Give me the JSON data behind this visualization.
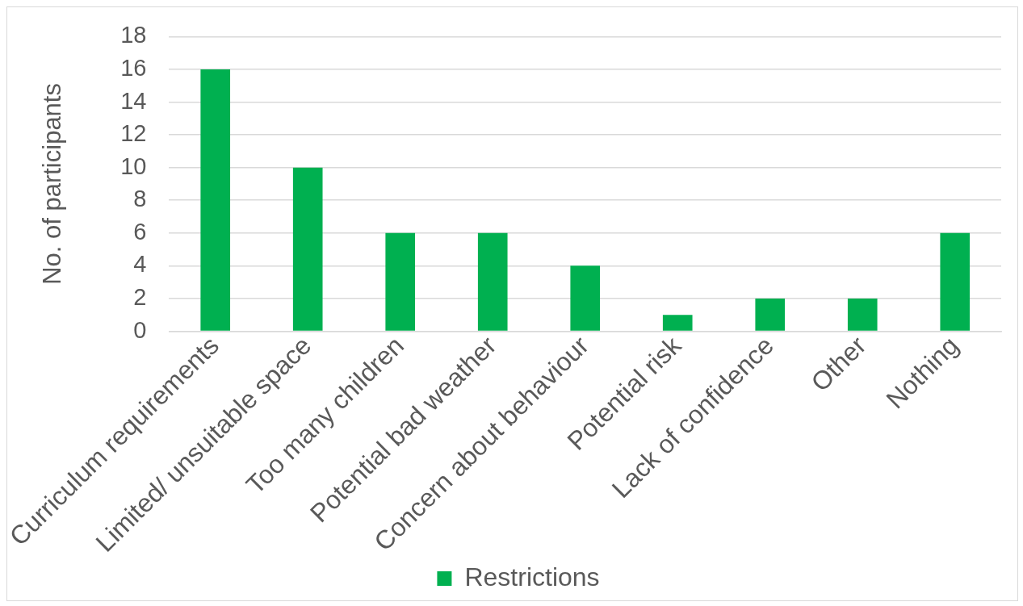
{
  "chart_data": {
    "type": "bar",
    "categories": [
      "Curriculum requirements",
      "Limited/ unsuitable space",
      "Too many children",
      "Potential bad weather",
      "Concern about behaviour",
      "Potential risk",
      "Lack of confidence",
      "Other",
      "Nothing"
    ],
    "series": [
      {
        "name": "Restrictions",
        "color": "#00b050",
        "values": [
          16,
          10,
          6,
          6,
          4,
          1,
          2,
          2,
          6
        ]
      }
    ],
    "ylabel": "No. of participants",
    "ylim": [
      0,
      18
    ],
    "yticks": [
      0,
      2,
      4,
      6,
      8,
      10,
      12,
      14,
      16,
      18
    ],
    "grid": "y",
    "legend": "bottom"
  }
}
